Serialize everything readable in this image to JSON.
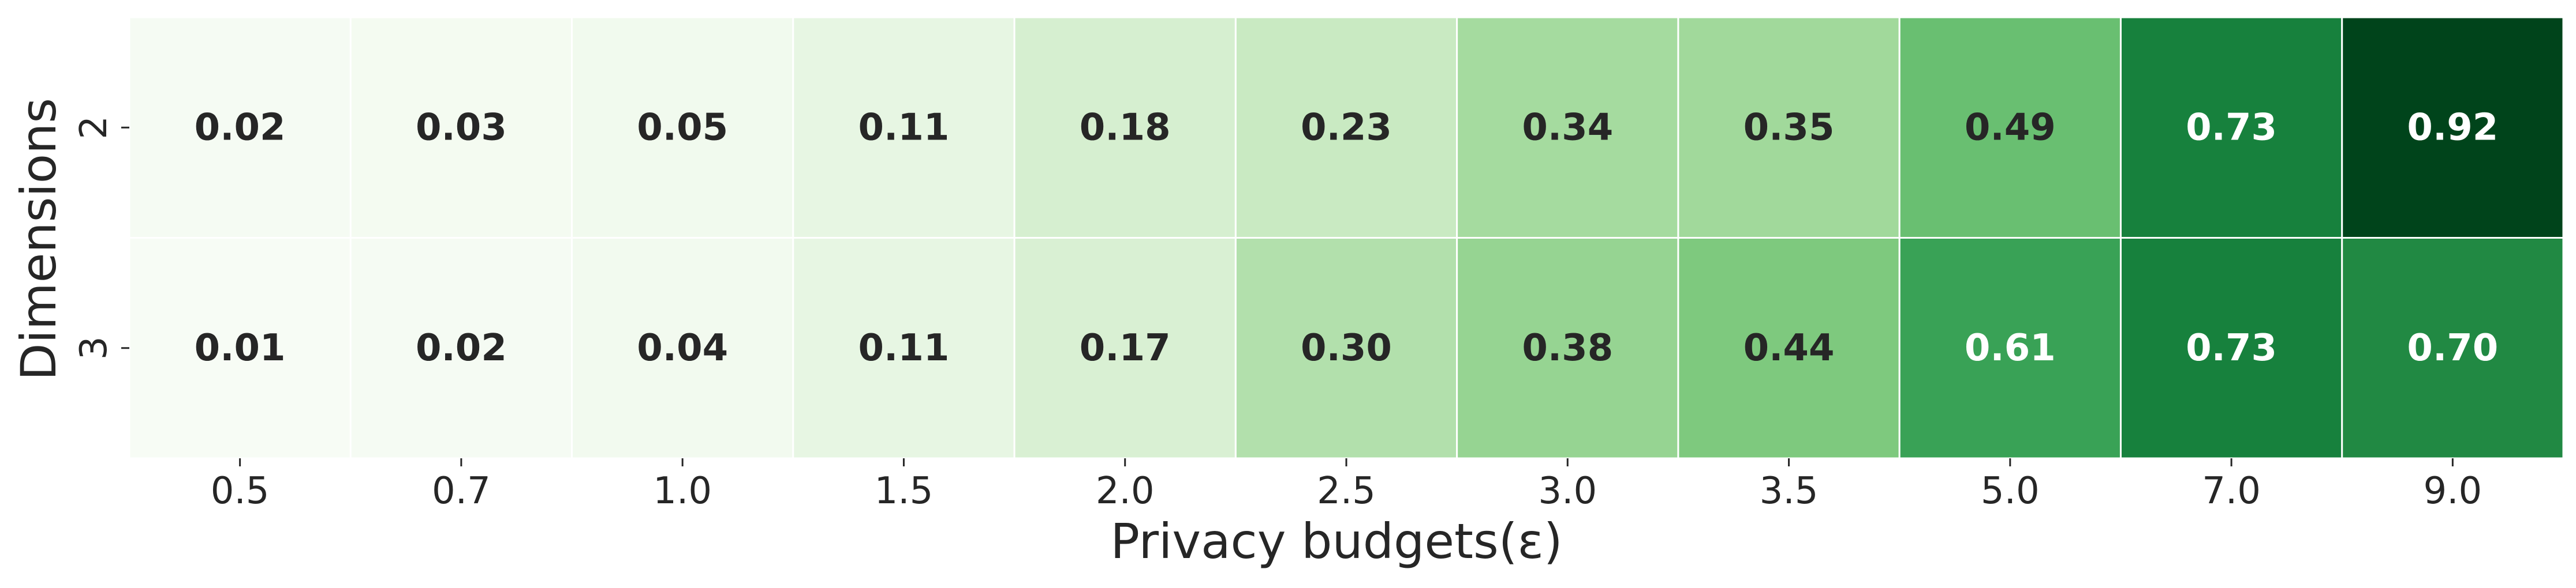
{
  "chart_data": {
    "type": "heatmap",
    "title": "",
    "xlabel": "Privacy budgets(ε)",
    "ylabel": "Dimensions",
    "x_categories": [
      "0.5",
      "0.7",
      "1.0",
      "1.5",
      "2.0",
      "2.5",
      "3.0",
      "3.5",
      "5.0",
      "7.0",
      "9.0"
    ],
    "y_categories": [
      "2",
      "3"
    ],
    "values": [
      [
        0.02,
        0.03,
        0.05,
        0.11,
        0.18,
        0.23,
        0.34,
        0.35,
        0.49,
        0.73,
        0.92
      ],
      [
        0.01,
        0.02,
        0.04,
        0.11,
        0.17,
        0.3,
        0.38,
        0.44,
        0.61,
        0.73,
        0.7
      ]
    ],
    "value_labels": [
      [
        "0.02",
        "0.03",
        "0.05",
        "0.11",
        "0.18",
        "0.23",
        "0.34",
        "0.35",
        "0.49",
        "0.73",
        "0.92"
      ],
      [
        "0.01",
        "0.02",
        "0.04",
        "0.11",
        "0.17",
        "0.30",
        "0.38",
        "0.44",
        "0.61",
        "0.73",
        "0.70"
      ]
    ],
    "colormap": "Greens",
    "colors": {
      "low": "#f7fcf5",
      "high": "#00441b",
      "text_dark": "#262626",
      "text_light": "#ffffff",
      "cell_border": "#ffffff"
    },
    "value_range": [
      0.01,
      0.92
    ],
    "colorbar": false,
    "grid": false
  }
}
